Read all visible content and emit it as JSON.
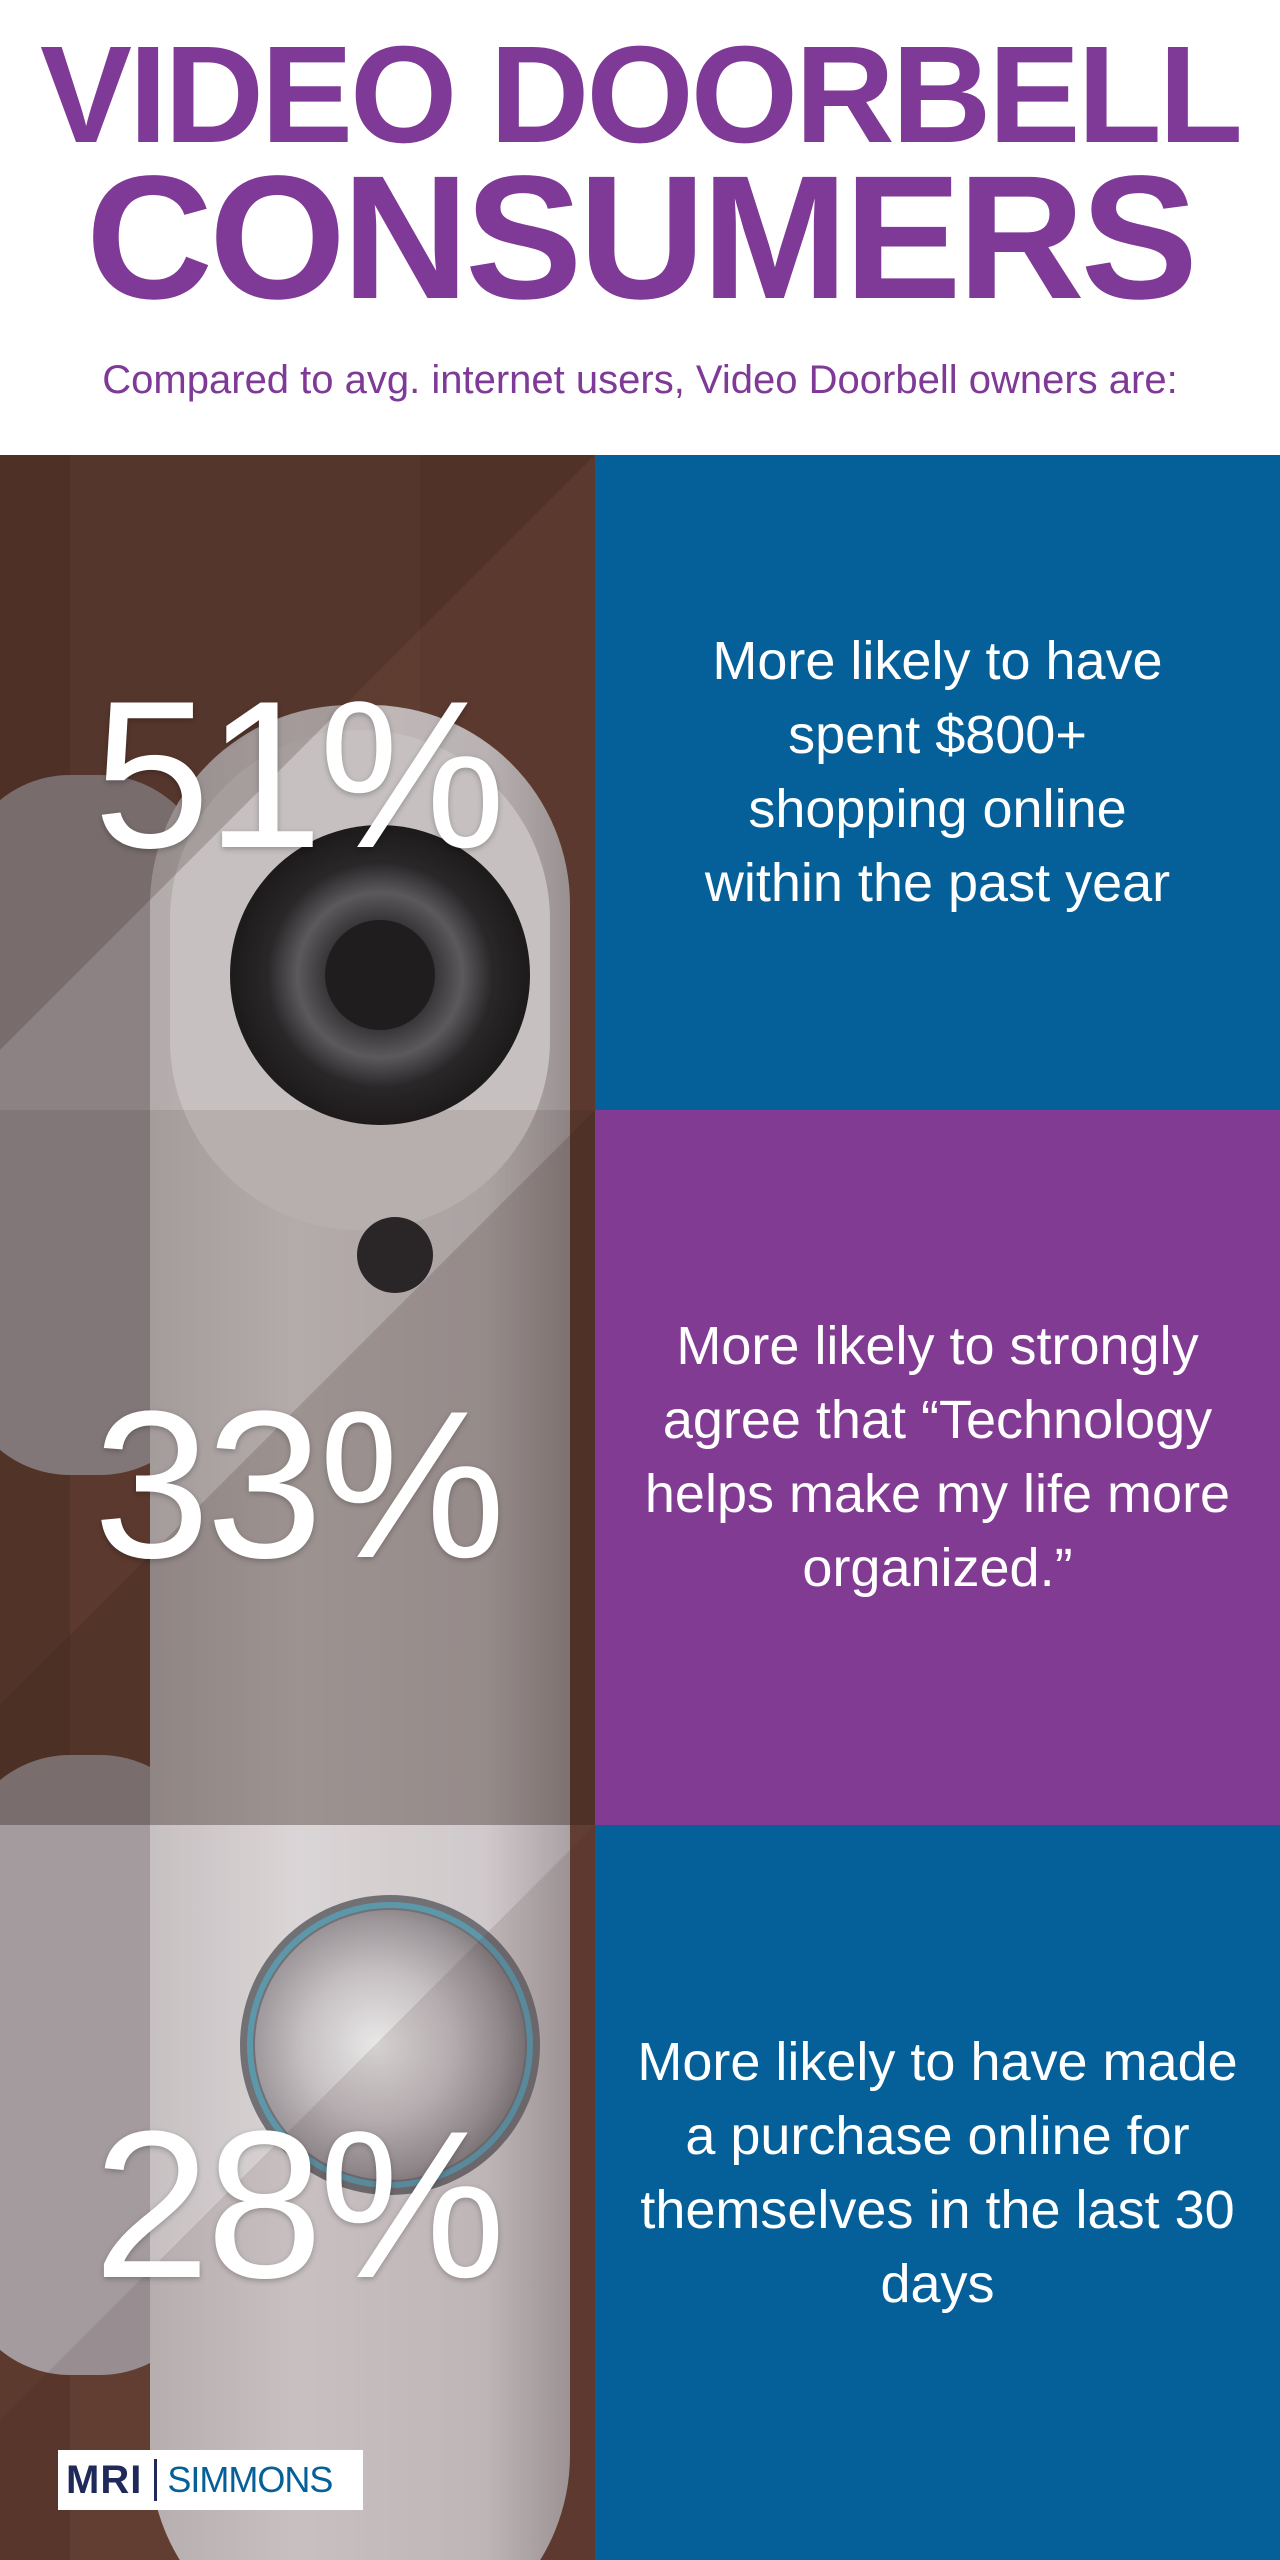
{
  "header": {
    "title_line1": "VIDEO DOORBELL",
    "title_line2": "CONSUMERS",
    "subtitle": "Compared to avg. internet users, Video Doorbell owners are:"
  },
  "stats": [
    {
      "percent": "51%",
      "description": "More likely to have spent $800+ shopping online within the past year"
    },
    {
      "percent": "33%",
      "description": "More likely to strongly agree that “Technology helps make my life more organized.”"
    },
    {
      "percent": "28%",
      "description": "More likely to have made a purchase online for themselves in the last 30 days"
    }
  ],
  "logo": {
    "brand_left": "MRI",
    "brand_right": "SIMMONS"
  },
  "colors": {
    "purple": "#7e3a96",
    "blue": "#05609a",
    "panel_purple": "#823b93",
    "wood": "#74493a"
  }
}
